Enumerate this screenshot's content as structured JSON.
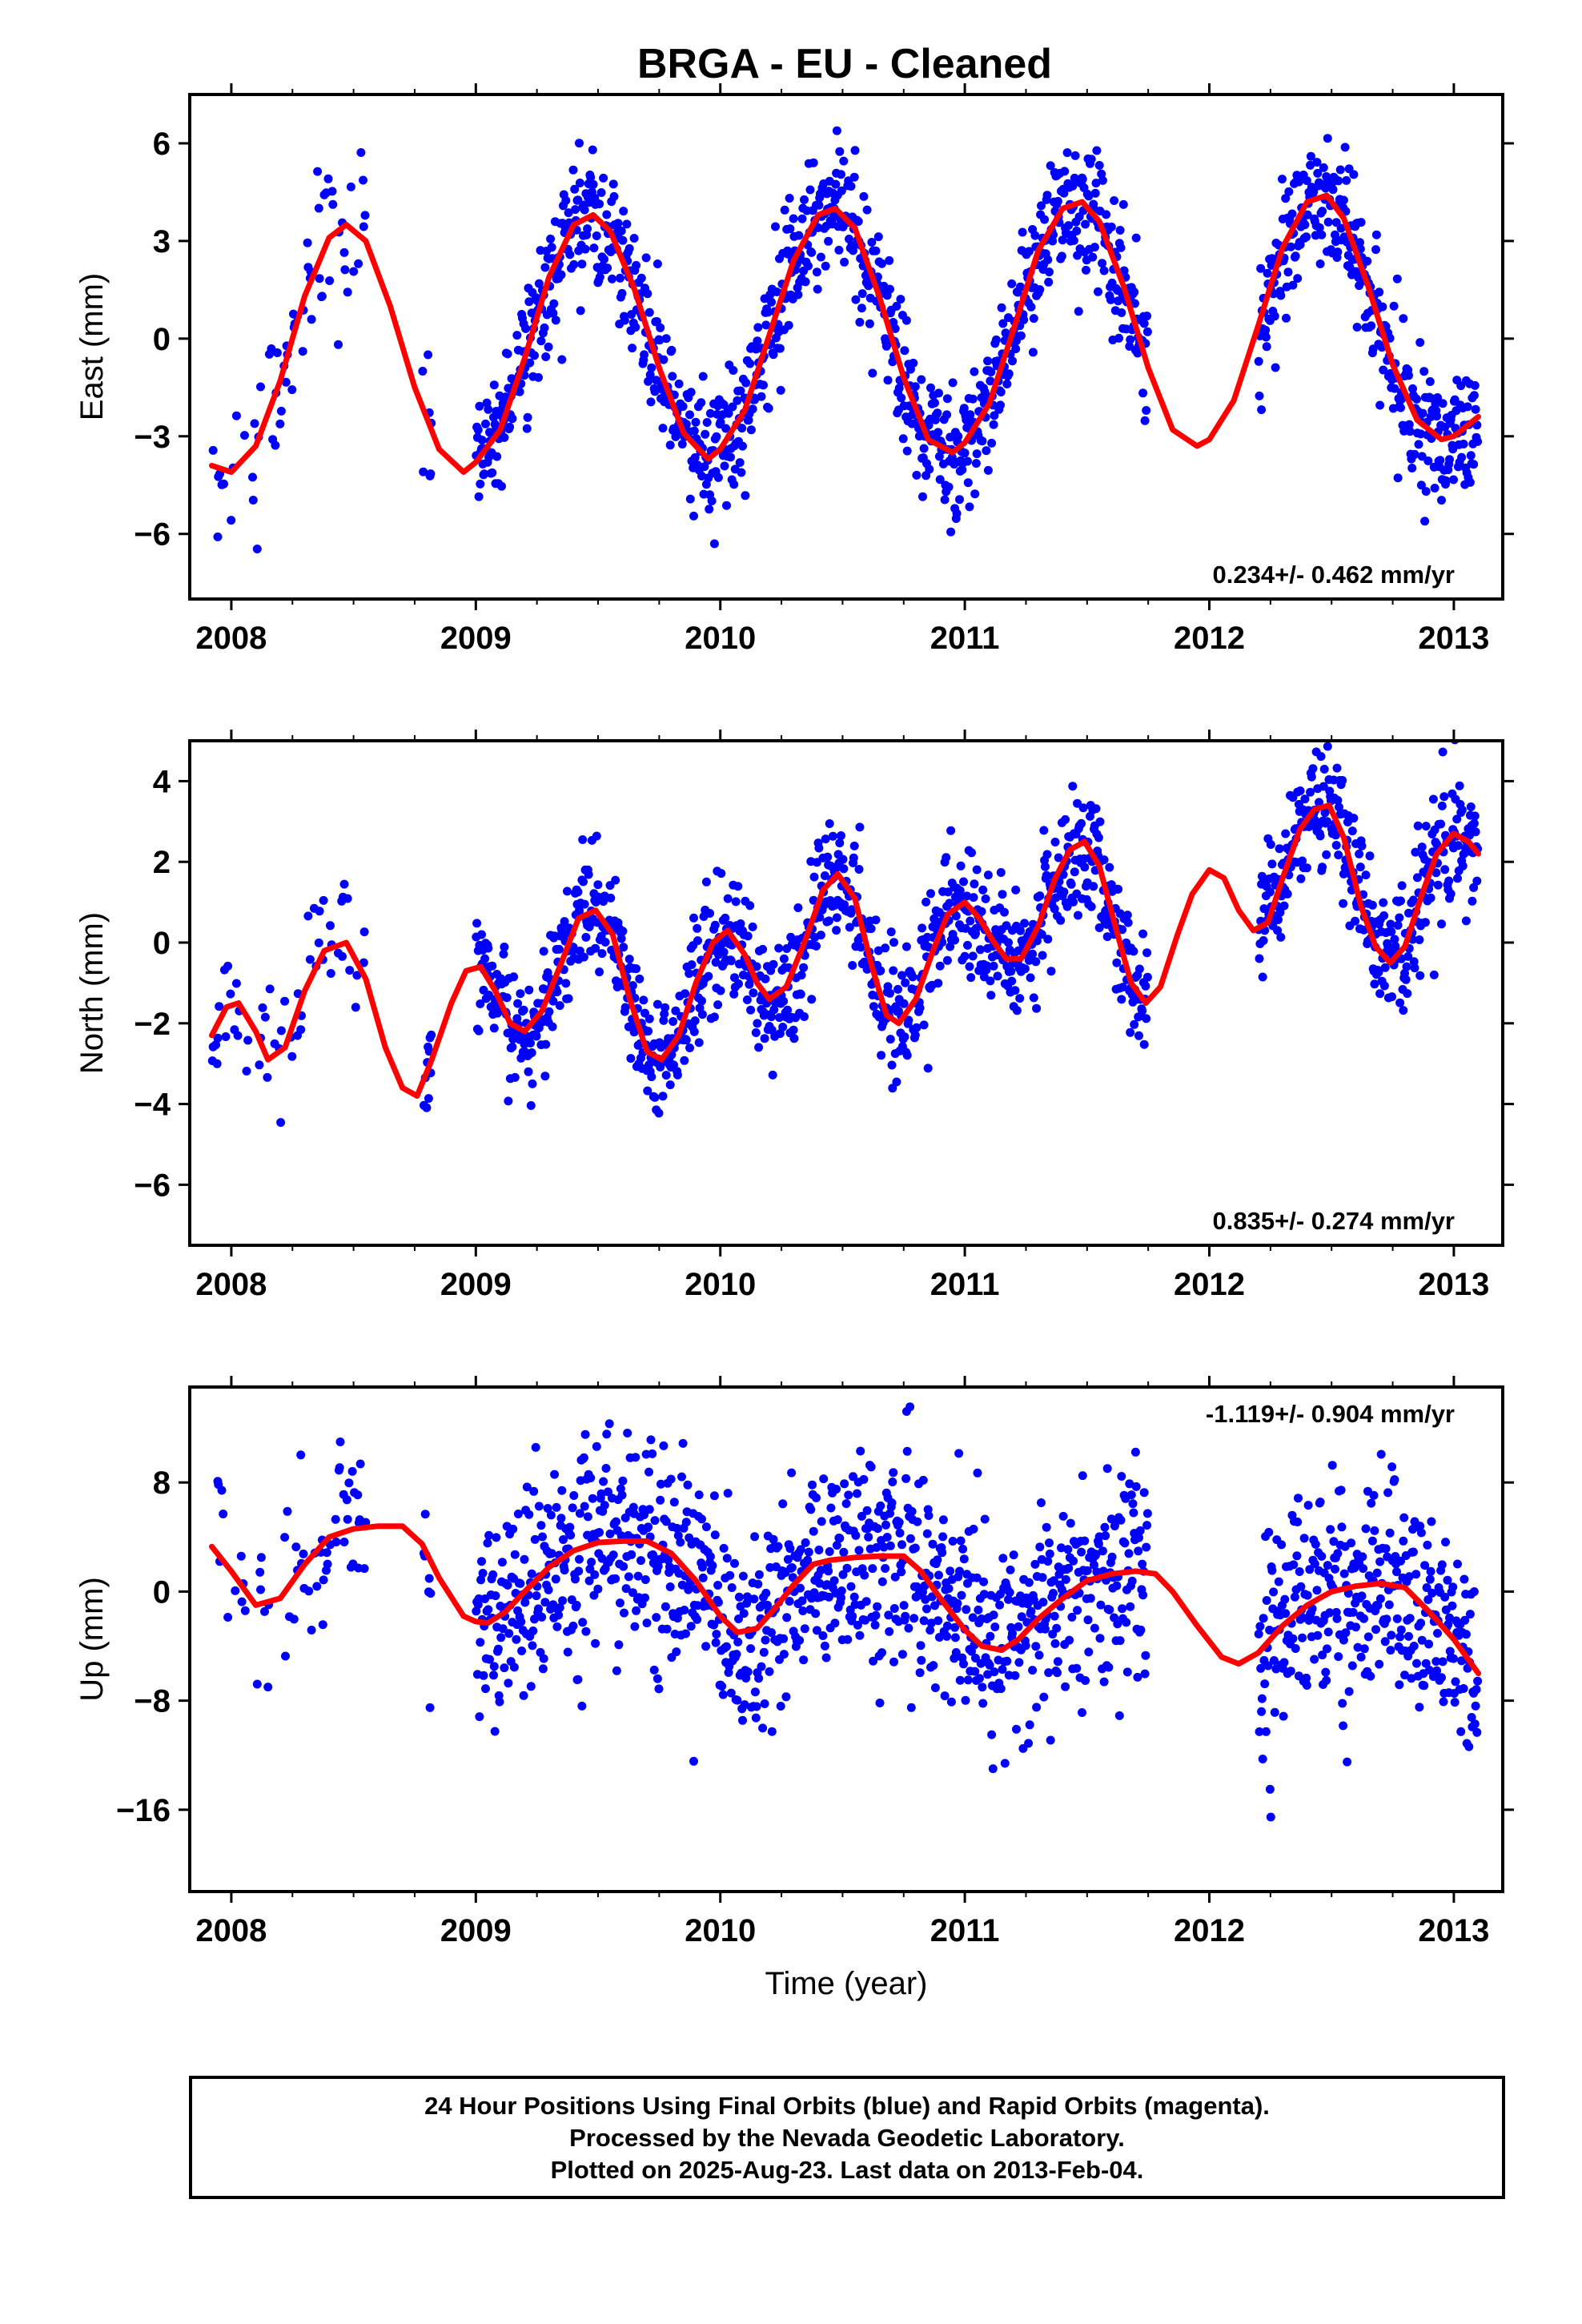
{
  "title": "BRGA  - EU - Cleaned",
  "colors": {
    "points": "#0000ff",
    "model": "#ff0000",
    "frame": "#000000"
  },
  "footer": {
    "lines": [
      "24 Hour Positions Using Final Orbits (blue) and Rapid Orbits (magenta).",
      "Processed by the Nevada Geodetic Laboratory.",
      "Plotted on 2025-Aug-23. Last data on 2013-Feb-04."
    ]
  },
  "chart_data": [
    {
      "type": "scatter",
      "ylabel": "East (mm)",
      "xlabel": "",
      "xlim": [
        2007.83,
        2013.2
      ],
      "ylim": [
        -8,
        7.5
      ],
      "xticks": [
        2008,
        2009,
        2010,
        2011,
        2012,
        2013
      ],
      "yticks": [
        -6,
        -3,
        0,
        3,
        6
      ],
      "rate_text": "0.234+/- 0.462 mm/yr",
      "rate_position": "bottom-right",
      "grid": false,
      "data_gaps": [
        [
          2008.55,
          2008.78
        ],
        [
          2008.82,
          2009.0
        ],
        [
          2011.75,
          2012.2
        ]
      ],
      "series": [
        {
          "style": "points",
          "color": "#0000ff",
          "x_range": [
            2007.92,
            2013.1
          ],
          "points_per_day": 1,
          "trend_mm_per_yr": 0.234,
          "annual_amplitude_mm": 3.8,
          "scatter_sd_mm": 1.0
        },
        {
          "style": "line",
          "color": "#ff0000",
          "x": [
            2007.92,
            2008.0,
            2008.1,
            2008.2,
            2008.3,
            2008.4,
            2008.47,
            2008.55,
            2008.65,
            2008.75,
            2008.85,
            2008.95,
            2009.0,
            2009.1,
            2009.2,
            2009.3,
            2009.4,
            2009.48,
            2009.55,
            2009.65,
            2009.75,
            2009.85,
            2009.95,
            2010.0,
            2010.1,
            2010.2,
            2010.3,
            2010.4,
            2010.47,
            2010.55,
            2010.65,
            2010.75,
            2010.85,
            2010.95,
            2011.0,
            2011.1,
            2011.2,
            2011.3,
            2011.4,
            2011.48,
            2011.55,
            2011.65,
            2011.75,
            2011.85,
            2011.95,
            2012.0,
            2012.1,
            2012.2,
            2012.3,
            2012.4,
            2012.48,
            2012.55,
            2012.65,
            2012.75,
            2012.85,
            2012.95,
            2013.0,
            2013.1
          ],
          "y": [
            -3.9,
            -4.1,
            -3.3,
            -1.3,
            1.3,
            3.1,
            3.5,
            3.0,
            1.0,
            -1.5,
            -3.4,
            -4.1,
            -3.8,
            -2.8,
            -0.6,
            1.9,
            3.5,
            3.8,
            3.3,
            1.5,
            -0.9,
            -2.9,
            -3.7,
            -3.4,
            -2.2,
            0.1,
            2.4,
            3.8,
            4.0,
            3.4,
            1.3,
            -1.2,
            -3.1,
            -3.5,
            -3.2,
            -2.0,
            0.3,
            2.7,
            4.0,
            4.2,
            3.6,
            1.6,
            -0.9,
            -2.8,
            -3.3,
            -3.1,
            -1.9,
            0.4,
            2.8,
            4.2,
            4.4,
            3.7,
            1.6,
            -0.8,
            -2.5,
            -3.1,
            -3.0,
            -2.4
          ]
        }
      ]
    },
    {
      "type": "scatter",
      "ylabel": "North (mm)",
      "xlabel": "",
      "xlim": [
        2007.83,
        2013.2
      ],
      "ylim": [
        -7.5,
        5
      ],
      "xticks": [
        2008,
        2009,
        2010,
        2011,
        2012,
        2013
      ],
      "yticks": [
        -6,
        -4,
        -2,
        0,
        2,
        4
      ],
      "rate_text": "0.835+/- 0.274 mm/yr",
      "rate_position": "bottom-right",
      "grid": false,
      "data_gaps": [
        [
          2008.55,
          2008.78
        ],
        [
          2008.82,
          2009.0
        ],
        [
          2011.75,
          2012.2
        ]
      ],
      "series": [
        {
          "style": "points",
          "color": "#0000ff",
          "x_range": [
            2007.92,
            2013.1
          ],
          "points_per_day": 1,
          "trend_mm_per_yr": 0.835,
          "annual_amplitude_mm": 1.0,
          "semiannual_amplitude_mm": 1.2,
          "scatter_sd_mm": 0.8
        },
        {
          "style": "line",
          "color": "#ff0000",
          "x": [
            2007.92,
            2007.98,
            2008.03,
            2008.1,
            2008.15,
            2008.22,
            2008.3,
            2008.38,
            2008.47,
            2008.55,
            2008.63,
            2008.7,
            2008.76,
            2008.82,
            2008.9,
            2008.96,
            2009.02,
            2009.08,
            2009.14,
            2009.2,
            2009.27,
            2009.35,
            2009.42,
            2009.49,
            2009.56,
            2009.63,
            2009.7,
            2009.76,
            2009.83,
            2009.9,
            2009.97,
            2010.03,
            2010.1,
            2010.15,
            2010.2,
            2010.27,
            2010.35,
            2010.42,
            2010.48,
            2010.55,
            2010.62,
            2010.68,
            2010.73,
            2010.8,
            2010.87,
            2010.93,
            2011.0,
            2011.06,
            2011.12,
            2011.17,
            2011.23,
            2011.3,
            2011.37,
            2011.43,
            2011.49,
            2011.55,
            2011.62,
            2011.68,
            2011.74,
            2011.8,
            2011.87,
            2011.93,
            2012.0,
            2012.06,
            2012.12,
            2012.18,
            2012.24,
            2012.3,
            2012.37,
            2012.43,
            2012.49,
            2012.55,
            2012.62,
            2012.68,
            2012.74,
            2012.8,
            2012.87,
            2012.93,
            2013.0,
            2013.06,
            2013.1
          ],
          "y": [
            -2.3,
            -1.6,
            -1.5,
            -2.2,
            -2.9,
            -2.6,
            -1.2,
            -0.2,
            0.0,
            -0.9,
            -2.6,
            -3.6,
            -3.8,
            -2.9,
            -1.5,
            -0.7,
            -0.6,
            -1.2,
            -2.0,
            -2.2,
            -1.7,
            -0.5,
            0.6,
            0.8,
            0.2,
            -1.4,
            -2.7,
            -2.9,
            -2.3,
            -1.0,
            0.0,
            0.3,
            -0.3,
            -1.0,
            -1.4,
            -1.1,
            0.1,
            1.3,
            1.7,
            1.1,
            -0.6,
            -1.8,
            -2.0,
            -1.4,
            -0.2,
            0.7,
            1.0,
            0.6,
            0.0,
            -0.4,
            -0.4,
            0.4,
            1.6,
            2.3,
            2.5,
            1.9,
            0.3,
            -1.0,
            -1.5,
            -1.1,
            0.2,
            1.2,
            1.8,
            1.6,
            0.8,
            0.3,
            0.5,
            1.6,
            2.8,
            3.3,
            3.4,
            2.6,
            0.9,
            -0.1,
            -0.5,
            -0.1,
            1.2,
            2.2,
            2.7,
            2.5,
            2.2
          ]
        }
      ]
    },
    {
      "type": "scatter",
      "ylabel": "Up (mm)",
      "xlabel": "Time (year)",
      "xlim": [
        2007.83,
        2013.2
      ],
      "ylim": [
        -22,
        15
      ],
      "xticks": [
        2008,
        2009,
        2010,
        2011,
        2012,
        2013
      ],
      "yticks": [
        -16,
        -8,
        0,
        8
      ],
      "rate_text": "-1.119+/- 0.904 mm/yr",
      "rate_position": "top-right",
      "grid": false,
      "data_gaps": [
        [
          2008.55,
          2008.78
        ],
        [
          2008.82,
          2009.0
        ],
        [
          2011.75,
          2012.2
        ]
      ],
      "series": [
        {
          "style": "points",
          "color": "#0000ff",
          "x_range": [
            2007.92,
            2013.1
          ],
          "points_per_day": 1,
          "trend_mm_per_yr": -1.119,
          "annual_amplitude_mm": 3.5,
          "scatter_sd_mm": 3.8
        },
        {
          "style": "line",
          "color": "#ff0000",
          "x": [
            2007.92,
            2008.0,
            2008.1,
            2008.2,
            2008.3,
            2008.4,
            2008.5,
            2008.6,
            2008.7,
            2008.78,
            2008.85,
            2008.95,
            2009.0,
            2009.05,
            2009.12,
            2009.2,
            2009.3,
            2009.4,
            2009.5,
            2009.6,
            2009.7,
            2009.8,
            2009.9,
            2010.0,
            2010.07,
            2010.15,
            2010.22,
            2010.3,
            2010.38,
            2010.45,
            2010.55,
            2010.65,
            2010.75,
            2010.82,
            2010.9,
            2011.0,
            2011.07,
            2011.15,
            2011.22,
            2011.3,
            2011.4,
            2011.5,
            2011.6,
            2011.7,
            2011.78,
            2011.85,
            2011.95,
            2012.05,
            2012.12,
            2012.2,
            2012.3,
            2012.4,
            2012.5,
            2012.6,
            2012.7,
            2012.8,
            2012.9,
            2013.0,
            2013.1
          ],
          "y": [
            3.3,
            1.5,
            -1.0,
            -0.5,
            2.0,
            4.0,
            4.6,
            4.8,
            4.8,
            3.5,
            1.0,
            -1.8,
            -2.2,
            -2.3,
            -1.5,
            0.0,
            1.8,
            3.0,
            3.6,
            3.7,
            3.7,
            2.8,
            0.8,
            -1.8,
            -3.0,
            -2.7,
            -1.3,
            0.5,
            2.0,
            2.3,
            2.5,
            2.6,
            2.6,
            1.5,
            -0.5,
            -2.8,
            -4.0,
            -4.3,
            -3.5,
            -2.0,
            -0.5,
            0.8,
            1.3,
            1.5,
            1.3,
            0.0,
            -2.5,
            -4.8,
            -5.3,
            -4.5,
            -2.5,
            -1.0,
            0.0,
            0.4,
            0.6,
            0.3,
            -1.5,
            -3.5,
            -6.0
          ]
        }
      ]
    }
  ]
}
